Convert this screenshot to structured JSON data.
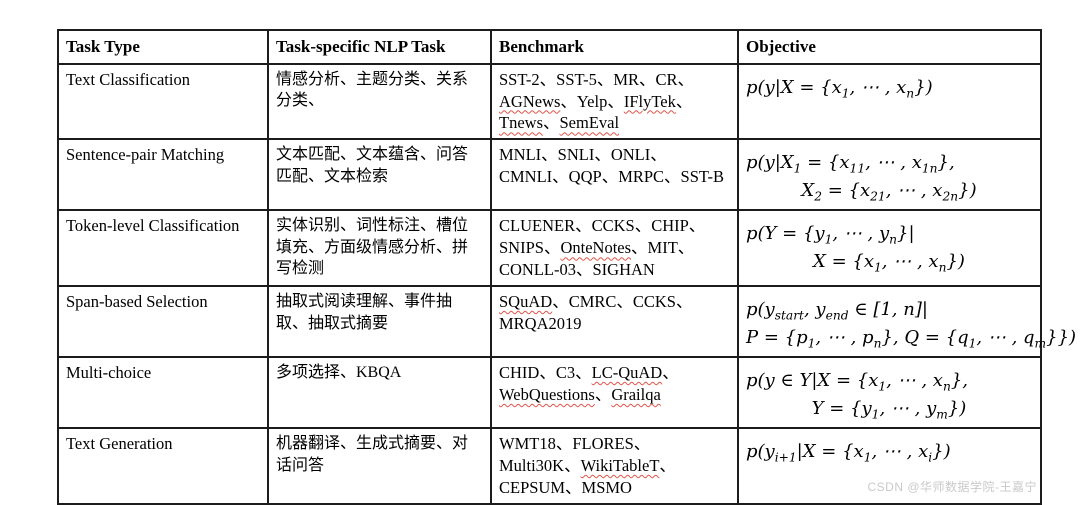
{
  "table": {
    "headers": [
      "Task Type",
      "Task-specific NLP Task",
      "Benchmark",
      "Objective"
    ],
    "list_separator": "、",
    "rows": [
      {
        "task_type": "Text Classification",
        "nlp_tasks": "情感分析、主题分类、关系分类、",
        "benchmarks": [
          {
            "text": "SST-2",
            "flagged": false
          },
          {
            "text": "SST-5",
            "flagged": false
          },
          {
            "text": "MR",
            "flagged": false
          },
          {
            "text": "CR",
            "flagged": false
          },
          {
            "text": "AGNews",
            "flagged": true
          },
          {
            "text": "Yelp",
            "flagged": false
          },
          {
            "text": "IFlyTek",
            "flagged": true
          },
          {
            "text": "Tnews",
            "flagged": true
          },
          {
            "text": "SemEval",
            "flagged": true
          }
        ],
        "objective_lines": [
          "p(y|X = {x_1, ⋯ , x_n})"
        ]
      },
      {
        "task_type": "Sentence-pair Matching",
        "nlp_tasks": "文本匹配、文本蕴含、问答匹配、文本检索",
        "benchmarks": [
          {
            "text": "MNLI",
            "flagged": false
          },
          {
            "text": "SNLI",
            "flagged": false
          },
          {
            "text": "ONLI",
            "flagged": false
          },
          {
            "text": "CMNLI",
            "flagged": false
          },
          {
            "text": "QQP",
            "flagged": false
          },
          {
            "text": "MRPC",
            "flagged": false
          },
          {
            "text": "SST-B",
            "flagged": false
          }
        ],
        "objective_lines": [
          "p(y|X_1 = {x_{11}, ⋯ , x_{1n}},",
          "X_2 = {x_{21}, ⋯ , x_{2n}})"
        ]
      },
      {
        "task_type": "Token-level Classification",
        "nlp_tasks": "实体识别、词性标注、槽位填充、方面级情感分析、拼写检测",
        "benchmarks": [
          {
            "text": "CLUENER",
            "flagged": false
          },
          {
            "text": "CCKS",
            "flagged": false
          },
          {
            "text": "CHIP",
            "flagged": false
          },
          {
            "text": "SNIPS",
            "flagged": false
          },
          {
            "text": "OnteNotes",
            "flagged": true
          },
          {
            "text": "MIT",
            "flagged": false
          },
          {
            "text": "CONLL-03",
            "flagged": false
          },
          {
            "text": "SIGHAN",
            "flagged": false
          }
        ],
        "objective_lines": [
          "p(Y = {y_1, ⋯ , y_n}|",
          "X = {x_1, ⋯ , x_n})"
        ]
      },
      {
        "task_type": "Span-based Selection",
        "nlp_tasks": "抽取式阅读理解、事件抽取、抽取式摘要",
        "benchmarks": [
          {
            "text": "SQuAD",
            "flagged": true
          },
          {
            "text": "CMRC",
            "flagged": false
          },
          {
            "text": "CCKS",
            "flagged": false
          },
          {
            "text": "MRQA2019",
            "flagged": false
          }
        ],
        "objective_lines": [
          "p(y_{start}, y_{end} ∈ [1, n]|",
          "P = {p_1, ⋯ , p_n}, Q = {q_1, ⋯ , q_m}})"
        ]
      },
      {
        "task_type": "Multi-choice",
        "nlp_tasks": "多项选择、KBQA",
        "benchmarks": [
          {
            "text": "CHID",
            "flagged": false
          },
          {
            "text": "C3",
            "flagged": false
          },
          {
            "text": "LC-QuAD",
            "flagged": true
          },
          {
            "text": "WebQuestions",
            "flagged": true
          },
          {
            "text": "Grailqa",
            "flagged": true
          }
        ],
        "objective_lines": [
          "p(y ∈ Y|X = {x_1, ⋯ , x_n},",
          "Y = {y_1, ⋯ , y_m})"
        ]
      },
      {
        "task_type": "Text Generation",
        "nlp_tasks": "机器翻译、生成式摘要、对话问答",
        "benchmarks": [
          {
            "text": "WMT18",
            "flagged": false
          },
          {
            "text": "FLORES",
            "flagged": false
          },
          {
            "text": "Multi30K",
            "flagged": false
          },
          {
            "text": "WikiTableT",
            "flagged": true
          },
          {
            "text": "CEPSUM",
            "flagged": false
          },
          {
            "text": "MSMO",
            "flagged": false
          }
        ],
        "objective_lines": [
          "p(y_{i+1}|X = {x_1, ⋯ , x_i})"
        ]
      }
    ]
  },
  "watermark": "CSDN @华师数据学院-王嘉宁",
  "colors": {
    "border": "#1c1c1c",
    "text": "#000000",
    "flag_underline": "#e0544a",
    "watermark": "#c9c9c9"
  }
}
